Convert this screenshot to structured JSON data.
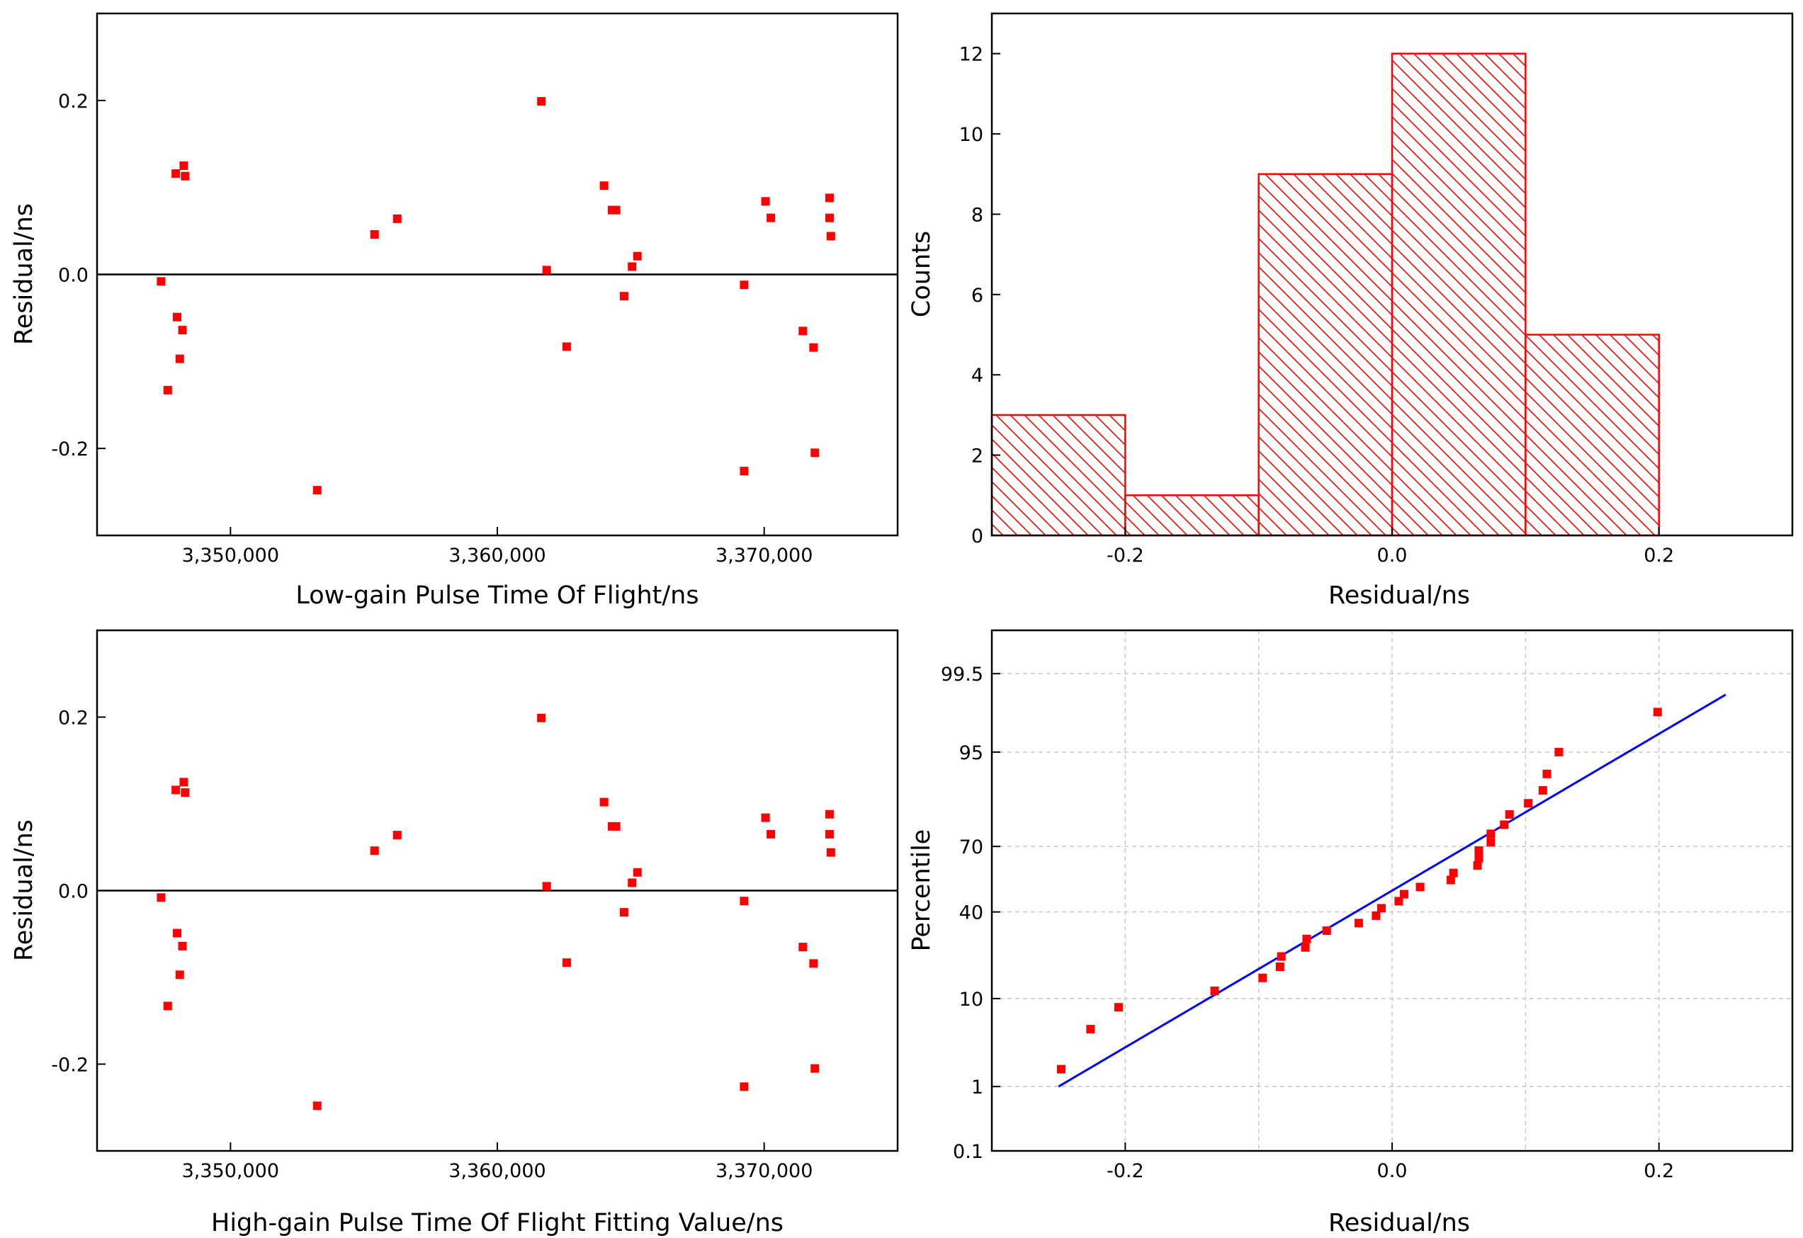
{
  "colors": {
    "marker": "#ff0000",
    "bar": "#ff0000",
    "fit_line": "#0000ff",
    "axis": "#000000",
    "grid": "#c8c8c8"
  },
  "chart_data": [
    {
      "id": "scatter-low",
      "type": "scatter",
      "title": "",
      "xlabel": "Low-gain Pulse Time Of Flight/ns",
      "ylabel": "Residual/ns",
      "xlim": [
        3345000,
        3375000
      ],
      "ylim": [
        -0.3,
        0.3
      ],
      "xticks": [
        3350000,
        3360000,
        3370000
      ],
      "xtick_labels": [
        "3,350,000",
        "3,360,000",
        "3,370,000"
      ],
      "yticks": [
        -0.2,
        0.0,
        0.2
      ],
      "ytick_labels": [
        "-0.2",
        "0.0",
        "0.2"
      ],
      "zero_line": true,
      "points": [
        [
          3347400,
          -0.008
        ],
        [
          3347650,
          -0.133
        ],
        [
          3347950,
          0.116
        ],
        [
          3348000,
          -0.049
        ],
        [
          3348100,
          -0.097
        ],
        [
          3348200,
          -0.064
        ],
        [
          3348250,
          0.125
        ],
        [
          3348300,
          0.113
        ],
        [
          3353250,
          -0.248
        ],
        [
          3355400,
          0.046
        ],
        [
          3356250,
          0.064
        ],
        [
          3361650,
          0.199
        ],
        [
          3361850,
          0.005
        ],
        [
          3362600,
          -0.083
        ],
        [
          3364000,
          0.102
        ],
        [
          3364300,
          0.074
        ],
        [
          3364450,
          0.074
        ],
        [
          3364750,
          -0.025
        ],
        [
          3365050,
          0.009
        ],
        [
          3365250,
          0.021
        ],
        [
          3369250,
          -0.012
        ],
        [
          3369250,
          -0.226
        ],
        [
          3370050,
          0.084
        ],
        [
          3370250,
          0.065
        ],
        [
          3371450,
          -0.065
        ],
        [
          3371850,
          -0.084
        ],
        [
          3371900,
          -0.205
        ],
        [
          3372450,
          0.088
        ],
        [
          3372450,
          0.065
        ],
        [
          3372500,
          0.044
        ]
      ]
    },
    {
      "id": "histogram",
      "type": "bar",
      "title": "",
      "xlabel": "Residual/ns",
      "ylabel": "Counts",
      "xlim": [
        -0.3,
        0.3
      ],
      "ylim": [
        0,
        13
      ],
      "xticks": [
        -0.2,
        0.0,
        0.2
      ],
      "xtick_labels": [
        "-0.2",
        "0.0",
        "0.2"
      ],
      "yticks": [
        0,
        2,
        4,
        6,
        8,
        10,
        12
      ],
      "ytick_labels": [
        "0",
        "2",
        "4",
        "6",
        "8",
        "10",
        "12"
      ],
      "bins": [
        [
          -0.3,
          -0.2
        ],
        [
          -0.2,
          -0.1
        ],
        [
          -0.1,
          0.0
        ],
        [
          0.0,
          0.1
        ],
        [
          0.1,
          0.2
        ]
      ],
      "values": [
        3,
        1,
        9,
        12,
        5
      ]
    },
    {
      "id": "scatter-high",
      "type": "scatter",
      "title": "",
      "xlabel": "High-gain Pulse Time Of Flight Fitting Value/ns",
      "ylabel": "Residual/ns",
      "xlim": [
        3345000,
        3375000
      ],
      "ylim": [
        -0.3,
        0.3
      ],
      "xticks": [
        3350000,
        3360000,
        3370000
      ],
      "xtick_labels": [
        "3,350,000",
        "3,360,000",
        "3,370,000"
      ],
      "yticks": [
        -0.2,
        0.0,
        0.2
      ],
      "ytick_labels": [
        "-0.2",
        "0.0",
        "0.2"
      ],
      "zero_line": true,
      "points": [
        [
          3347400,
          -0.008
        ],
        [
          3347650,
          -0.133
        ],
        [
          3347950,
          0.116
        ],
        [
          3348000,
          -0.049
        ],
        [
          3348100,
          -0.097
        ],
        [
          3348200,
          -0.064
        ],
        [
          3348250,
          0.125
        ],
        [
          3348300,
          0.113
        ],
        [
          3353250,
          -0.248
        ],
        [
          3355400,
          0.046
        ],
        [
          3356250,
          0.064
        ],
        [
          3361650,
          0.199
        ],
        [
          3361850,
          0.005
        ],
        [
          3362600,
          -0.083
        ],
        [
          3364000,
          0.102
        ],
        [
          3364300,
          0.074
        ],
        [
          3364450,
          0.074
        ],
        [
          3364750,
          -0.025
        ],
        [
          3365050,
          0.009
        ],
        [
          3365250,
          0.021
        ],
        [
          3369250,
          -0.012
        ],
        [
          3369250,
          -0.226
        ],
        [
          3370050,
          0.084
        ],
        [
          3370250,
          0.065
        ],
        [
          3371450,
          -0.065
        ],
        [
          3371850,
          -0.084
        ],
        [
          3371900,
          -0.205
        ],
        [
          3372450,
          0.088
        ],
        [
          3372450,
          0.065
        ],
        [
          3372500,
          0.044
        ]
      ]
    },
    {
      "id": "probability",
      "type": "scatter",
      "title": "",
      "xlabel": "Residual/ns",
      "ylabel": "Percentile",
      "xlim": [
        -0.3,
        0.3
      ],
      "yscale": "normal-probability",
      "ylim_percent": [
        0.1,
        99.9
      ],
      "xticks": [
        -0.2,
        0.0,
        0.2
      ],
      "xtick_labels": [
        "-0.2",
        "0.0",
        "0.2"
      ],
      "yticks": [
        0.1,
        1,
        10,
        40,
        70,
        95,
        99.5
      ],
      "ytick_labels": [
        "0.1",
        "1",
        "10",
        "40",
        "70",
        "95",
        "99.5"
      ],
      "grid": true,
      "points": [
        [
          -0.248,
          1.7
        ],
        [
          -0.226,
          5.0
        ],
        [
          -0.205,
          8.3
        ],
        [
          -0.133,
          11.7
        ],
        [
          -0.097,
          15.0
        ],
        [
          -0.084,
          18.3
        ],
        [
          -0.083,
          21.7
        ],
        [
          -0.065,
          25.0
        ],
        [
          -0.064,
          28.3
        ],
        [
          -0.049,
          31.7
        ],
        [
          -0.025,
          35.0
        ],
        [
          -0.012,
          38.3
        ],
        [
          -0.008,
          41.7
        ],
        [
          0.005,
          45.0
        ],
        [
          0.009,
          48.3
        ],
        [
          0.021,
          51.7
        ],
        [
          0.044,
          55.0
        ],
        [
          0.046,
          58.3
        ],
        [
          0.064,
          61.7
        ],
        [
          0.065,
          65.0
        ],
        [
          0.065,
          68.3
        ],
        [
          0.074,
          71.7
        ],
        [
          0.074,
          75.0
        ],
        [
          0.084,
          78.3
        ],
        [
          0.088,
          81.7
        ],
        [
          0.102,
          85.0
        ],
        [
          0.113,
          88.3
        ],
        [
          0.116,
          91.7
        ],
        [
          0.125,
          95.0
        ],
        [
          0.199,
          98.3
        ]
      ],
      "fit_line": {
        "x": [
          -0.25,
          0.25
        ],
        "percent": [
          1.0,
          99.0
        ]
      }
    }
  ]
}
